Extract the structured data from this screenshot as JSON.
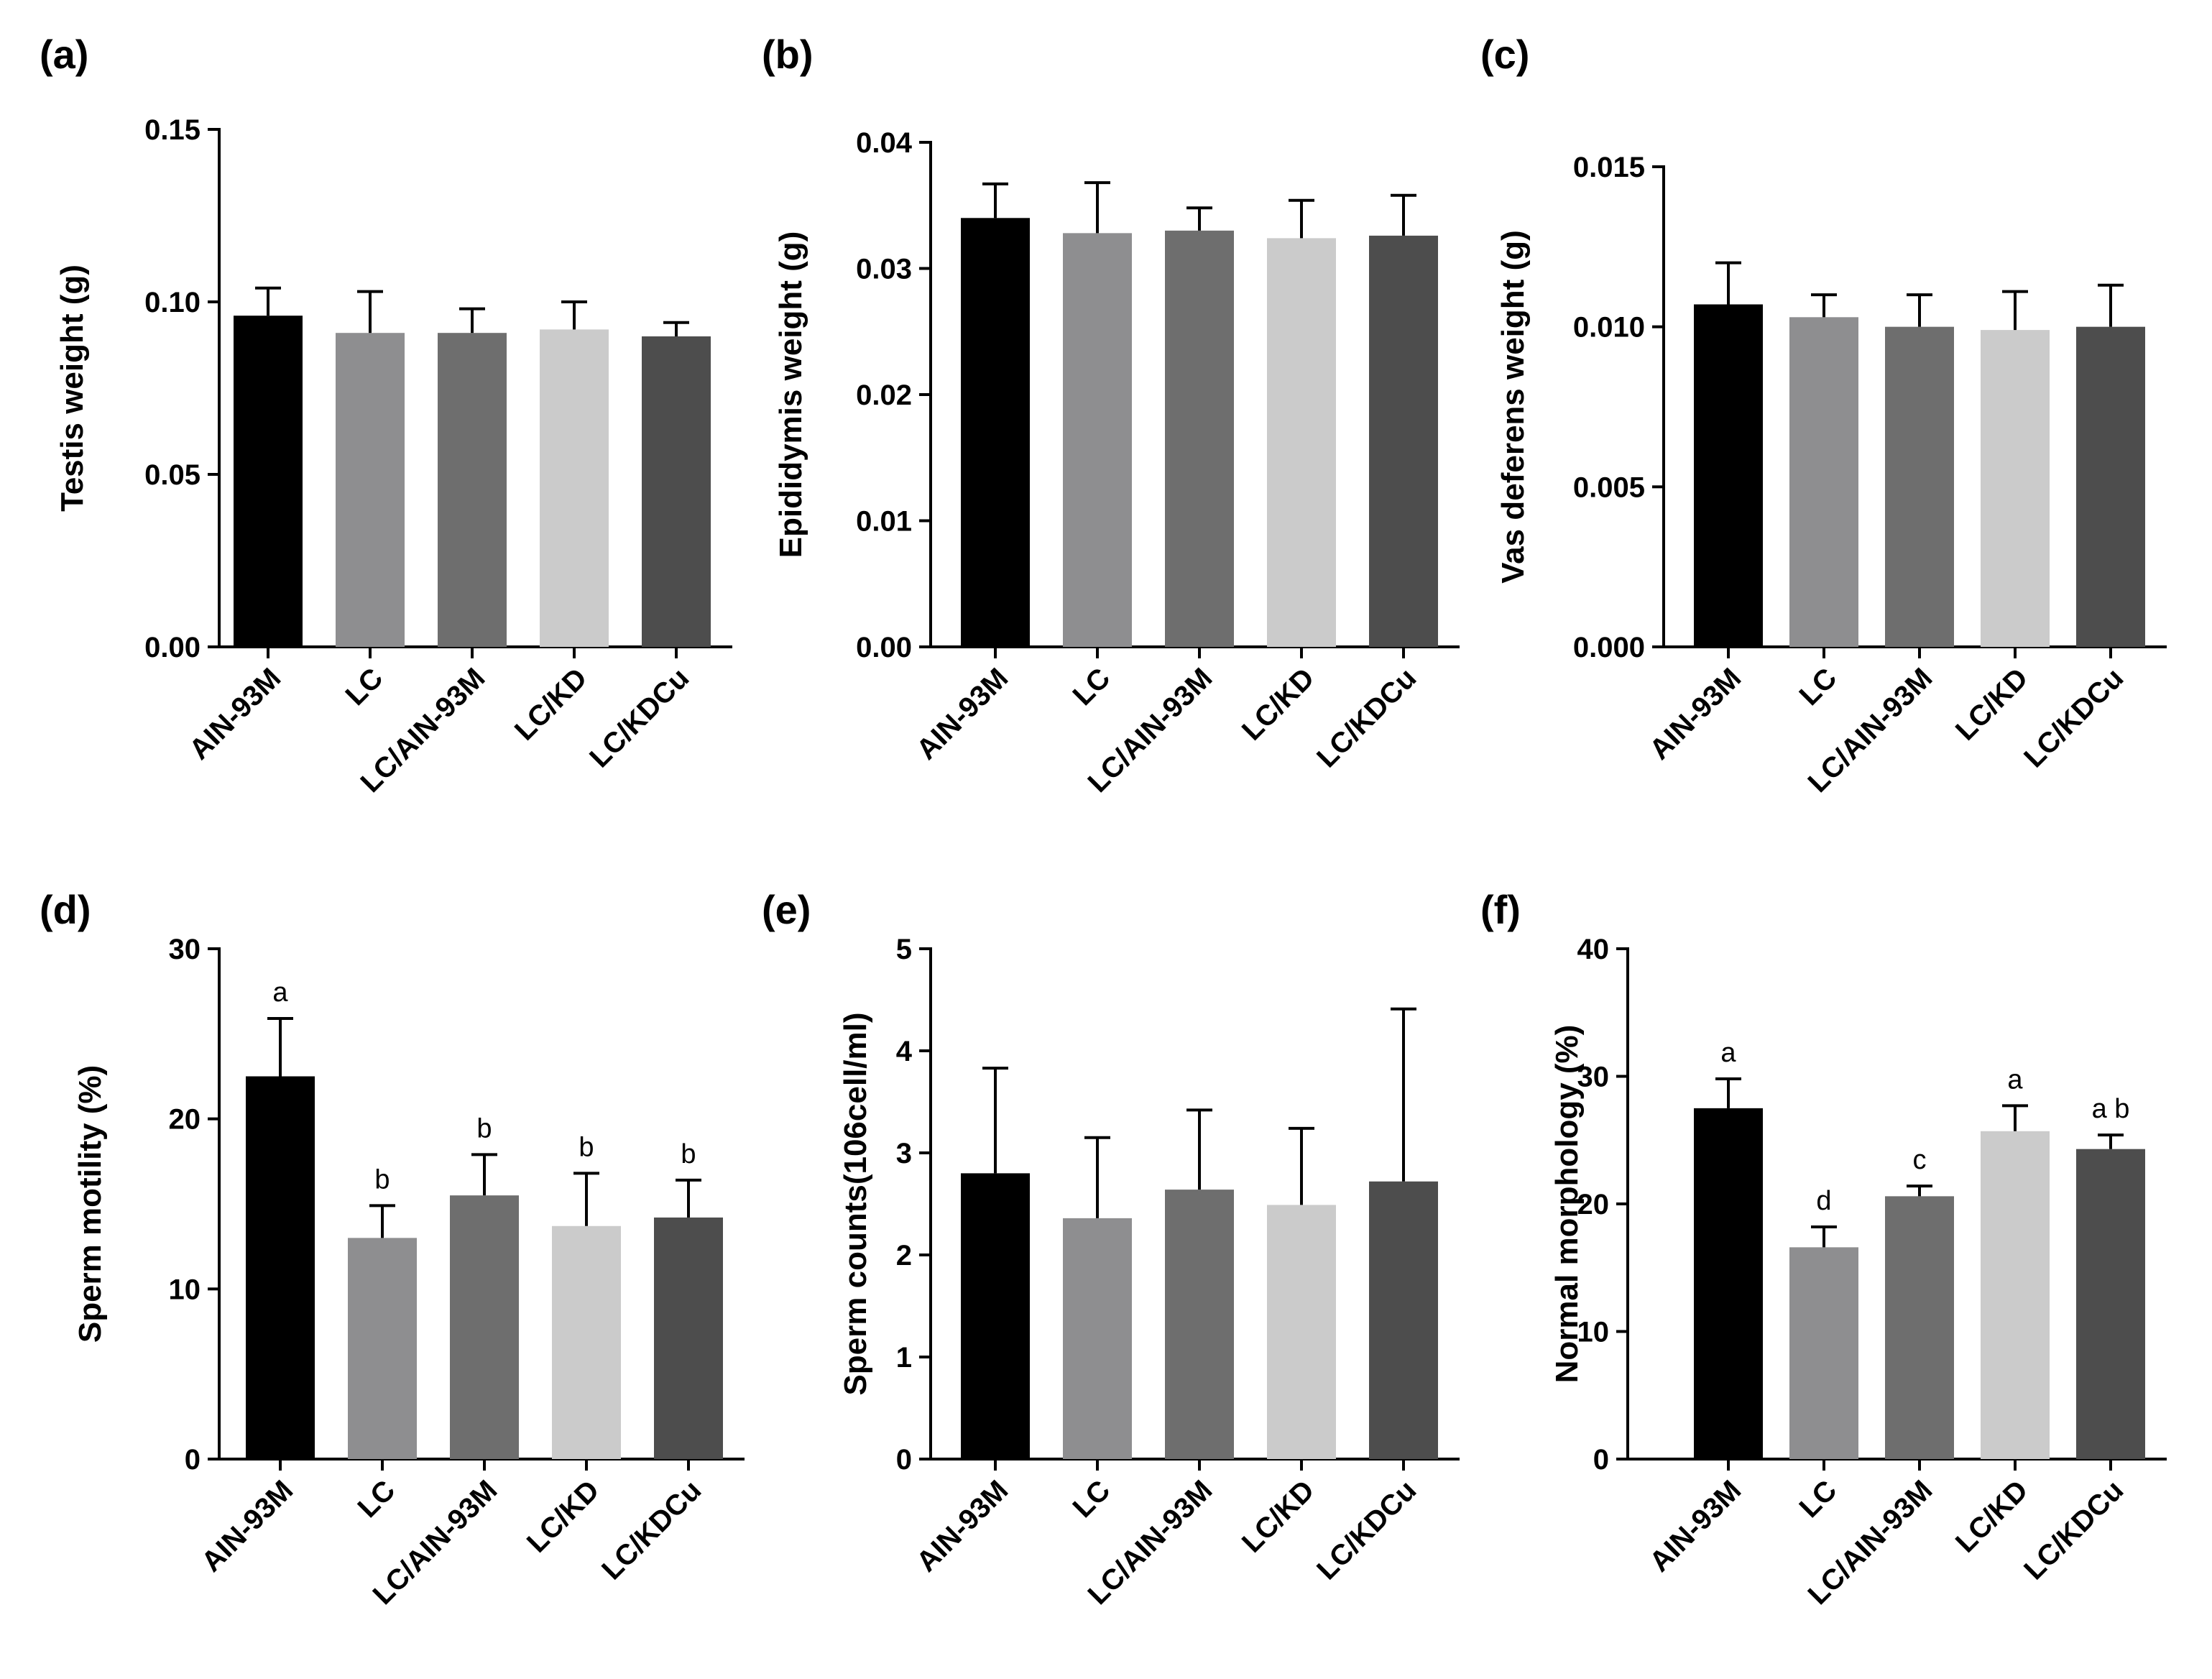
{
  "chart_data": [
    {
      "type": "bar",
      "panel_label": "(a)",
      "categories": [
        "AIN-93M",
        "LC",
        "LC/AIN-93M",
        "LC/KD",
        "LC/KDCu"
      ],
      "values": [
        0.096,
        0.091,
        0.091,
        0.092,
        0.09
      ],
      "errors": [
        0.008,
        0.012,
        0.007,
        0.008,
        0.004
      ],
      "ylabel": "Testis weight (g)",
      "ylim": [
        0,
        0.15
      ],
      "yticks": [
        "0.00",
        "0.05",
        "0.10",
        "0.15"
      ],
      "significance": [],
      "colors": [
        "#000000",
        "#8e8e90",
        "#6e6e6e",
        "#cbcbcb",
        "#4d4d4d"
      ]
    },
    {
      "type": "bar",
      "panel_label": "(b)",
      "categories": [
        "AIN-93M",
        "LC",
        "LC/AIN-93M",
        "LC/KD",
        "LC/KDCu"
      ],
      "values": [
        0.034,
        0.0328,
        0.033,
        0.0324,
        0.0326
      ],
      "errors": [
        0.0027,
        0.004,
        0.0018,
        0.003,
        0.0032
      ],
      "ylabel": "Epididymis weight (g)",
      "ylim": [
        0,
        0.04
      ],
      "yticks": [
        "0.00",
        "0.01",
        "0.02",
        "0.03",
        "0.04"
      ],
      "significance": [],
      "colors": [
        "#000000",
        "#8e8e90",
        "#6e6e6e",
        "#cbcbcb",
        "#4d4d4d"
      ]
    },
    {
      "type": "bar",
      "panel_label": "(c)",
      "categories": [
        "AIN-93M",
        "LC",
        "LC/AIN-93M",
        "LC/KD",
        "LC/KDCu"
      ],
      "values": [
        0.0107,
        0.0103,
        0.01,
        0.0099,
        0.01
      ],
      "errors": [
        0.0013,
        0.0007,
        0.001,
        0.0012,
        0.0013
      ],
      "ylabel": "Vas deferens weight (g)",
      "ylim": [
        0,
        0.015
      ],
      "yticks": [
        "0.000",
        "0.005",
        "0.010",
        "0.015"
      ],
      "significance": [],
      "colors": [
        "#000000",
        "#8e8e90",
        "#6e6e6e",
        "#cbcbcb",
        "#4d4d4d"
      ]
    },
    {
      "type": "bar",
      "panel_label": "(d)",
      "categories": [
        "AIN-93M",
        "LC",
        "LC/AIN-93M",
        "LC/KD",
        "LC/KDCu"
      ],
      "values": [
        22.5,
        13.0,
        15.5,
        13.7,
        14.2
      ],
      "errors": [
        3.4,
        1.9,
        2.4,
        3.1,
        2.2
      ],
      "ylabel": "Sperm motility (%)",
      "ylim": [
        0,
        30
      ],
      "yticks": [
        "0",
        "10",
        "20",
        "30"
      ],
      "significance": [
        "a",
        "b",
        "b",
        "b",
        "b"
      ],
      "colors": [
        "#000000",
        "#8e8e90",
        "#6e6e6e",
        "#cbcbcb",
        "#4d4d4d"
      ]
    },
    {
      "type": "bar",
      "panel_label": "(e)",
      "categories": [
        "AIN-93M",
        "LC",
        "LC/AIN-93M",
        "LC/KD",
        "LC/KDCu"
      ],
      "values": [
        2.8,
        2.36,
        2.64,
        2.49,
        2.72
      ],
      "errors": [
        1.03,
        0.79,
        0.78,
        0.75,
        1.69
      ],
      "ylabel": "Sperm counts(106cell/ml)",
      "ylim": [
        0,
        5
      ],
      "yticks": [
        "0",
        "1",
        "2",
        "3",
        "4",
        "5"
      ],
      "significance": [],
      "colors": [
        "#000000",
        "#8e8e90",
        "#6e6e6e",
        "#cbcbcb",
        "#4d4d4d"
      ]
    },
    {
      "type": "bar",
      "panel_label": "(f)",
      "categories": [
        "AIN-93M",
        "LC",
        "LC/AIN-93M",
        "LC/KD",
        "LC/KDCu"
      ],
      "values": [
        27.5,
        16.6,
        20.6,
        25.7,
        24.3
      ],
      "errors": [
        2.3,
        1.6,
        0.8,
        2.0,
        1.1
      ],
      "ylabel": "Normal morphology (%)",
      "ylim": [
        0,
        40
      ],
      "yticks": [
        "0",
        "10",
        "20",
        "30",
        "40"
      ],
      "significance": [
        "a",
        "d",
        "c",
        "a",
        "a b"
      ],
      "colors": [
        "#000000",
        "#8e8e90",
        "#6e6e6e",
        "#cbcbcb",
        "#4d4d4d"
      ]
    }
  ]
}
